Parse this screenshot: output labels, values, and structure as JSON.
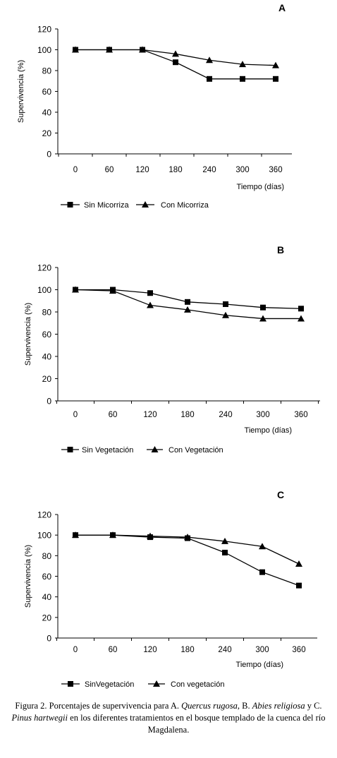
{
  "chart_data": [
    {
      "type": "line",
      "title": "A",
      "xlabel": "Tiempo (días)",
      "ylabel": "Supervivencia (%)",
      "categories": [
        "0",
        "60",
        "120",
        "180",
        "240",
        "300",
        "360"
      ],
      "yticks": [
        "0",
        "20",
        "40",
        "60",
        "80",
        "100",
        "120"
      ],
      "ylim": [
        0,
        120
      ],
      "grid": false,
      "legend_position": "bottom-left",
      "series": [
        {
          "name": "Sin Micorriza",
          "marker": "square",
          "values": [
            100,
            100,
            100,
            88,
            72,
            72,
            72
          ]
        },
        {
          "name": "Con Micorriza",
          "marker": "triangle",
          "values": [
            100,
            100,
            100,
            96,
            90,
            86,
            85
          ]
        }
      ]
    },
    {
      "type": "line",
      "title": "B",
      "xlabel": "Tiempo (días)",
      "ylabel": "Supervivencia (%)",
      "categories": [
        "0",
        "60",
        "120",
        "180",
        "240",
        "300",
        "360"
      ],
      "yticks": [
        "0",
        "20",
        "40",
        "60",
        "80",
        "100",
        "120"
      ],
      "ylim": [
        0,
        120
      ],
      "grid": false,
      "legend_position": "bottom-left",
      "series": [
        {
          "name": "Sin Vegetación",
          "marker": "square",
          "values": [
            100,
            100,
            97,
            89,
            87,
            84,
            83
          ]
        },
        {
          "name": "Con Vegetación",
          "marker": "triangle",
          "values": [
            100,
            99,
            86,
            82,
            77,
            74,
            74
          ]
        }
      ]
    },
    {
      "type": "line",
      "title": "C",
      "xlabel": "Tiempo (días)",
      "ylabel": "Supervivencia (%)",
      "categories": [
        "0",
        "60",
        "120",
        "180",
        "240",
        "300",
        "360"
      ],
      "yticks": [
        "0",
        "20",
        "40",
        "60",
        "80",
        "100",
        "120"
      ],
      "ylim": [
        0,
        120
      ],
      "grid": false,
      "legend_position": "bottom-left",
      "series": [
        {
          "name": "SinVegetación",
          "marker": "square",
          "values": [
            100,
            100,
            98,
            97,
            83,
            64,
            51
          ]
        },
        {
          "name": "Con vegetación",
          "marker": "triangle",
          "values": [
            100,
            100,
            99,
            98,
            94,
            89,
            72
          ]
        }
      ]
    }
  ],
  "caption": {
    "prefix": "Figura 2. Porcentajes de supervivencia para A. ",
    "species_a": "Quercus rugosa",
    "sep_b": ", B. ",
    "species_b": "Abies religiosa",
    "sep_c": " y C. ",
    "species_c": "Pinus hartwegii",
    "suffix": " en los diferentes tratamientos en el bosque templado de la cuenca del río Magdalena."
  }
}
